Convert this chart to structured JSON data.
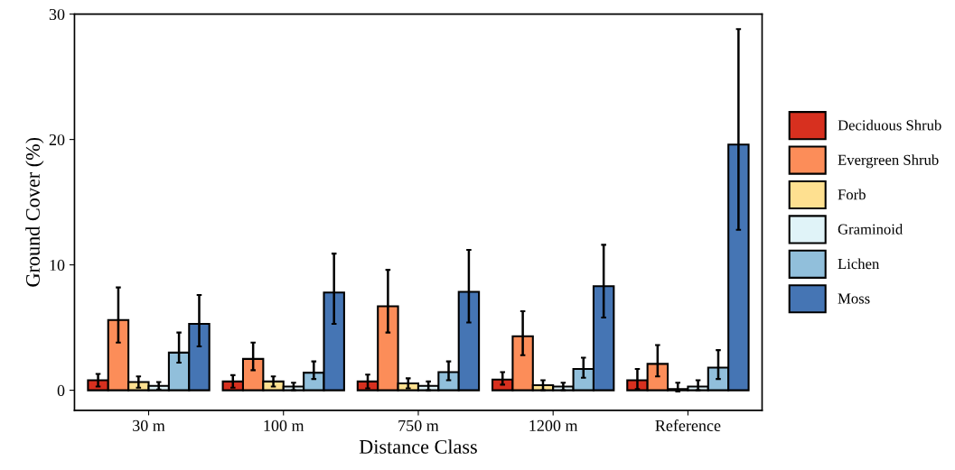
{
  "chart_data": {
    "type": "bar",
    "xlabel": "Distance Class",
    "ylabel": "Ground Cover (%)",
    "categories": [
      "30 m",
      "100 m",
      "750 m",
      "1200 m",
      "Reference"
    ],
    "series": [
      {
        "name": "Deciduous Shrub",
        "color": "#d7301f",
        "values": [
          0.8,
          0.7,
          0.7,
          0.85,
          0.8
        ],
        "errors": [
          [
            0.3,
            1.3
          ],
          [
            0.2,
            1.2
          ],
          [
            0.15,
            1.25
          ],
          [
            0.45,
            1.45
          ],
          [
            0.1,
            1.7
          ]
        ]
      },
      {
        "name": "Evergreen Shrub",
        "color": "#fc8d59",
        "values": [
          5.6,
          2.5,
          6.7,
          4.3,
          2.1
        ],
        "errors": [
          [
            3.8,
            8.2
          ],
          [
            1.6,
            3.8
          ],
          [
            4.6,
            9.6
          ],
          [
            2.8,
            6.3
          ],
          [
            1.1,
            3.6
          ]
        ]
      },
      {
        "name": "Forb",
        "color": "#fee090",
        "values": [
          0.65,
          0.7,
          0.55,
          0.4,
          0.1
        ],
        "errors": [
          [
            0.2,
            1.1
          ],
          [
            0.3,
            1.1
          ],
          [
            0.15,
            0.95
          ],
          [
            0.0,
            0.8
          ],
          [
            -0.1,
            0.6
          ]
        ]
      },
      {
        "name": "Graminoid",
        "color": "#e0f3f8",
        "values": [
          0.35,
          0.3,
          0.35,
          0.3,
          0.3
        ],
        "errors": [
          [
            0.05,
            0.65
          ],
          [
            0.0,
            0.6
          ],
          [
            0.0,
            0.7
          ],
          [
            0.0,
            0.6
          ],
          [
            0.0,
            0.8
          ]
        ]
      },
      {
        "name": "Lichen",
        "color": "#91bfdb",
        "values": [
          3.0,
          1.4,
          1.45,
          1.7,
          1.8
        ],
        "errors": [
          [
            2.2,
            4.6
          ],
          [
            0.9,
            2.3
          ],
          [
            0.8,
            2.3
          ],
          [
            1.0,
            2.6
          ],
          [
            0.9,
            3.2
          ]
        ]
      },
      {
        "name": "Moss",
        "color": "#4575b4",
        "values": [
          5.3,
          7.8,
          7.85,
          8.3,
          19.6
        ],
        "errors": [
          [
            3.5,
            7.6
          ],
          [
            5.3,
            10.9
          ],
          [
            5.4,
            11.2
          ],
          [
            5.8,
            11.6
          ],
          [
            12.8,
            28.8
          ]
        ]
      }
    ],
    "ylim": [
      -1.6,
      30
    ],
    "yticks": [
      0,
      10,
      20,
      30
    ],
    "grid": false,
    "legend": "right"
  }
}
